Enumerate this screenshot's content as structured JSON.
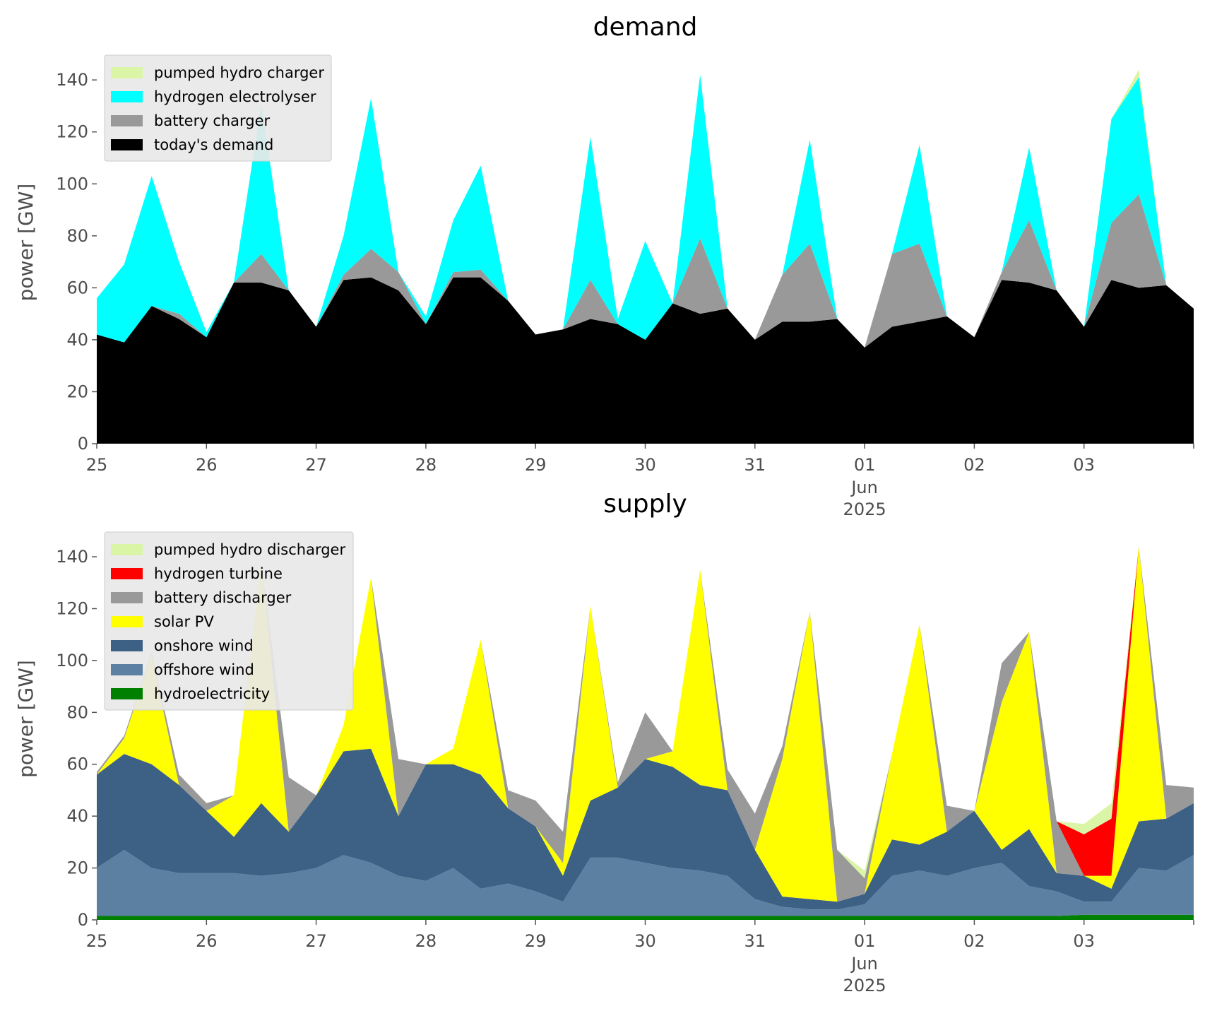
{
  "chart_data": [
    {
      "type": "area",
      "stacked": true,
      "title": "demand",
      "ylabel": "power [GW]",
      "ylim": [
        0,
        155
      ],
      "yticks": [
        0,
        20,
        40,
        60,
        80,
        100,
        120,
        140
      ],
      "xlim": [
        "2025-05-25",
        "2025-06-04"
      ],
      "x": [
        "2025-05-25T00:00",
        "2025-05-25T06:00",
        "2025-05-25T12:00",
        "2025-05-25T18:00",
        "2025-05-26T00:00",
        "2025-05-26T06:00",
        "2025-05-26T12:00",
        "2025-05-26T18:00",
        "2025-05-27T00:00",
        "2025-05-27T06:00",
        "2025-05-27T12:00",
        "2025-05-27T18:00",
        "2025-05-28T00:00",
        "2025-05-28T06:00",
        "2025-05-28T12:00",
        "2025-05-28T18:00",
        "2025-05-29T00:00",
        "2025-05-29T06:00",
        "2025-05-29T12:00",
        "2025-05-29T18:00",
        "2025-05-30T00:00",
        "2025-05-30T06:00",
        "2025-05-30T12:00",
        "2025-05-30T18:00",
        "2025-05-31T00:00",
        "2025-05-31T06:00",
        "2025-05-31T12:00",
        "2025-05-31T18:00",
        "2025-06-01T00:00",
        "2025-06-01T06:00",
        "2025-06-01T12:00",
        "2025-06-01T18:00",
        "2025-06-02T00:00",
        "2025-06-02T06:00",
        "2025-06-02T12:00",
        "2025-06-02T18:00",
        "2025-06-03T00:00",
        "2025-06-03T06:00",
        "2025-06-03T12:00",
        "2025-06-03T18:00",
        "2025-06-04T00:00"
      ],
      "series": [
        {
          "name": "today's demand",
          "color": "#000000",
          "values": [
            42,
            39,
            53,
            48,
            41,
            62,
            62,
            59,
            45,
            63,
            64,
            59,
            46,
            64,
            64,
            55,
            42,
            44,
            48,
            46,
            40,
            54,
            50,
            52,
            40,
            47,
            47,
            48,
            37,
            45,
            47,
            49,
            41,
            63,
            62,
            59,
            45,
            63,
            60,
            61,
            52
          ]
        },
        {
          "name": "battery charger",
          "color": "#999999",
          "values": [
            0,
            0,
            0,
            2,
            0,
            0,
            11,
            0,
            0,
            2,
            11,
            7,
            0,
            2,
            3,
            0,
            0,
            0,
            15,
            0,
            0,
            0,
            29,
            0,
            0,
            18,
            30,
            0,
            0,
            28,
            30,
            0,
            0,
            3,
            24,
            0,
            0,
            22,
            36,
            0,
            0
          ]
        },
        {
          "name": "hydrogen electrolyser",
          "color": "#00ffff",
          "values": [
            14,
            30,
            50,
            20,
            2,
            0,
            58,
            0,
            0,
            15,
            58,
            0,
            3,
            20,
            40,
            0,
            0,
            0,
            55,
            2,
            38,
            0,
            63,
            0,
            0,
            0,
            40,
            0,
            0,
            0,
            38,
            0,
            0,
            0,
            28,
            0,
            0,
            40,
            45,
            0,
            0
          ]
        },
        {
          "name": "pumped hydro charger",
          "color": "#dbf5a7",
          "values": [
            0,
            0,
            0,
            0,
            0,
            0,
            0,
            0,
            0,
            0,
            0,
            0,
            0,
            0,
            0,
            0,
            0,
            0,
            0,
            0,
            0,
            0,
            0,
            0,
            0,
            0,
            0,
            0,
            0,
            0,
            0,
            0,
            0,
            0,
            0,
            0,
            0,
            0,
            3,
            0,
            0
          ]
        }
      ],
      "xticks": [
        {
          "date": "2025-05-25",
          "label": "25"
        },
        {
          "date": "2025-05-26",
          "label": "26"
        },
        {
          "date": "2025-05-27",
          "label": "27"
        },
        {
          "date": "2025-05-28",
          "label": "28"
        },
        {
          "date": "2025-05-29",
          "label": "29"
        },
        {
          "date": "2025-05-30",
          "label": "30"
        },
        {
          "date": "2025-05-31",
          "label": "31"
        },
        {
          "date": "2025-06-01",
          "label": "01",
          "sub1": "Jun",
          "sub2": "2025"
        },
        {
          "date": "2025-06-02",
          "label": "02"
        },
        {
          "date": "2025-06-03",
          "label": "03"
        },
        {
          "date": "2025-06-04",
          "label": ""
        }
      ],
      "legend": {
        "position": "upper-left",
        "entries": [
          "pumped hydro charger",
          "hydrogen electrolyser",
          "battery charger",
          "today's demand"
        ]
      }
    },
    {
      "type": "area",
      "stacked": true,
      "title": "supply",
      "ylabel": "power [GW]",
      "ylim": [
        0,
        155
      ],
      "yticks": [
        0,
        20,
        40,
        60,
        80,
        100,
        120,
        140
      ],
      "xlim": [
        "2025-05-25",
        "2025-06-04"
      ],
      "x": [
        "2025-05-25T00:00",
        "2025-05-25T06:00",
        "2025-05-25T12:00",
        "2025-05-25T18:00",
        "2025-05-26T00:00",
        "2025-05-26T06:00",
        "2025-05-26T12:00",
        "2025-05-26T18:00",
        "2025-05-27T00:00",
        "2025-05-27T06:00",
        "2025-05-27T12:00",
        "2025-05-27T18:00",
        "2025-05-28T00:00",
        "2025-05-28T06:00",
        "2025-05-28T12:00",
        "2025-05-28T18:00",
        "2025-05-29T00:00",
        "2025-05-29T06:00",
        "2025-05-29T12:00",
        "2025-05-29T18:00",
        "2025-05-30T00:00",
        "2025-05-30T06:00",
        "2025-05-30T12:00",
        "2025-05-30T18:00",
        "2025-05-31T00:00",
        "2025-05-31T06:00",
        "2025-05-31T12:00",
        "2025-05-31T18:00",
        "2025-06-01T00:00",
        "2025-06-01T06:00",
        "2025-06-01T12:00",
        "2025-06-01T18:00",
        "2025-06-02T00:00",
        "2025-06-02T06:00",
        "2025-06-02T12:00",
        "2025-06-02T18:00",
        "2025-06-03T00:00",
        "2025-06-03T06:00",
        "2025-06-03T12:00",
        "2025-06-03T18:00",
        "2025-06-04T00:00"
      ],
      "series": [
        {
          "name": "hydroelectricity",
          "color": "#008000",
          "values": [
            1.5,
            1.5,
            1.5,
            1.5,
            1.5,
            1.5,
            1.5,
            1.5,
            1.5,
            1.5,
            1.5,
            1.5,
            1.5,
            1.5,
            1.5,
            1.5,
            1.5,
            1.5,
            1.5,
            1.5,
            1.5,
            1.5,
            1.5,
            1.5,
            1.5,
            1.5,
            1.5,
            1.5,
            1.5,
            1.5,
            1.5,
            1.5,
            1.5,
            1.5,
            1.5,
            1.5,
            2,
            2,
            2,
            2,
            2
          ]
        },
        {
          "name": "offshore wind",
          "color": "#5b80a2",
          "values": [
            18.5,
            25.5,
            18.5,
            16.5,
            16.5,
            16.5,
            15.5,
            16.5,
            18.5,
            23.5,
            20.5,
            15.5,
            13.5,
            18.5,
            10.5,
            12.5,
            9.5,
            5.5,
            22.5,
            22.5,
            20.5,
            18.5,
            17.5,
            15.5,
            6.5,
            3.5,
            2.5,
            2.5,
            4.5,
            15.5,
            17.5,
            15.5,
            18.5,
            20.5,
            11.5,
            9.5,
            5,
            5,
            18,
            17,
            23
          ]
        },
        {
          "name": "onshore wind",
          "color": "#3c6184",
          "values": [
            36,
            37,
            40,
            34,
            24,
            14,
            28,
            16,
            28,
            40,
            44,
            23,
            45,
            40,
            44,
            29,
            25,
            10,
            22,
            27,
            40,
            39,
            33,
            33,
            19,
            4,
            4,
            3,
            4,
            14,
            10,
            17,
            22,
            5,
            22,
            7,
            10,
            5,
            18,
            20,
            20
          ]
        },
        {
          "name": "solar PV",
          "color": "#ffff00",
          "values": [
            0,
            6,
            42,
            0,
            0,
            16,
            93,
            0,
            0,
            10,
            66,
            0,
            0,
            6,
            52,
            0,
            0,
            5,
            75,
            0,
            0,
            6,
            83,
            0,
            0,
            53,
            111,
            0,
            0,
            33,
            85,
            0,
            0,
            57,
            76,
            0,
            0,
            5,
            106,
            0,
            0
          ]
        },
        {
          "name": "battery discharger",
          "color": "#999999",
          "values": [
            1,
            1,
            1,
            4,
            3,
            0,
            0,
            21,
            0,
            0,
            0,
            22,
            0,
            0,
            0,
            7,
            10,
            12,
            0,
            2,
            18,
            0,
            0,
            8,
            14,
            5,
            0,
            20,
            6,
            0,
            0,
            10,
            0,
            15,
            0,
            20,
            0,
            0,
            0,
            13,
            6
          ]
        },
        {
          "name": "hydrogen turbine",
          "color": "#ff0000",
          "values": [
            0,
            0,
            0,
            0,
            0,
            0,
            0,
            0,
            0,
            0,
            0,
            0,
            0,
            0,
            0,
            0,
            0,
            0,
            0,
            0,
            0,
            0,
            0,
            0,
            0,
            0,
            0,
            0,
            0,
            0,
            0,
            0,
            0,
            0,
            0,
            0,
            16,
            22,
            0,
            0,
            0
          ]
        },
        {
          "name": "pumped hydro discharger",
          "color": "#dbf5a7",
          "values": [
            0,
            0,
            0,
            0,
            0,
            0,
            0,
            0,
            0,
            0,
            0,
            0,
            0,
            0,
            0,
            0,
            0,
            0,
            0,
            0,
            0,
            0,
            0,
            0,
            0,
            0,
            0,
            0,
            3,
            0,
            0,
            0,
            0,
            0,
            0,
            0,
            4,
            6,
            0,
            0,
            0
          ]
        }
      ],
      "xticks": [
        {
          "date": "2025-05-25",
          "label": "25"
        },
        {
          "date": "2025-05-26",
          "label": "26"
        },
        {
          "date": "2025-05-27",
          "label": "27"
        },
        {
          "date": "2025-05-28",
          "label": "28"
        },
        {
          "date": "2025-05-29",
          "label": "29"
        },
        {
          "date": "2025-05-30",
          "label": "30"
        },
        {
          "date": "2025-05-31",
          "label": "31"
        },
        {
          "date": "2025-06-01",
          "label": "01",
          "sub1": "Jun",
          "sub2": "2025"
        },
        {
          "date": "2025-06-02",
          "label": "02"
        },
        {
          "date": "2025-06-03",
          "label": "03"
        },
        {
          "date": "2025-06-04",
          "label": ""
        }
      ],
      "legend": {
        "position": "upper-left",
        "entries": [
          "pumped hydro discharger",
          "hydrogen turbine",
          "battery discharger",
          "solar PV",
          "onshore wind",
          "offshore wind",
          "hydroelectricity"
        ]
      }
    }
  ]
}
